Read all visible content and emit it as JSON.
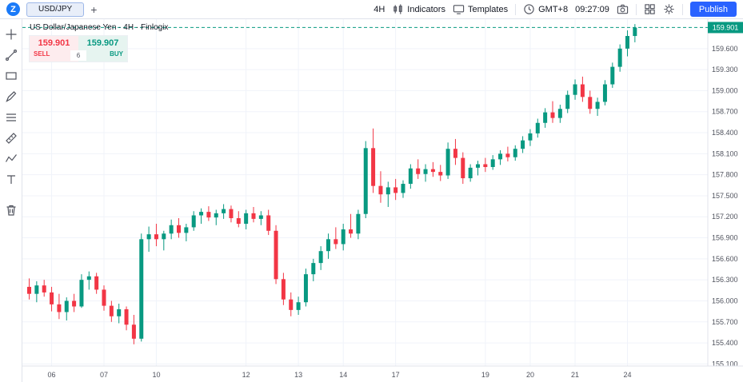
{
  "header": {
    "logo_letter": "Z",
    "tab_symbol": "USD/JPY",
    "add_tab_label": "+",
    "interval": "4H",
    "indicators_label": "Indicators",
    "templates_label": "Templates",
    "timezone": "GMT+8",
    "clock": "09:27:09",
    "publish_label": "Publish"
  },
  "left_toolbar": {
    "items": [
      "crosshair",
      "trend-line",
      "rectangle",
      "brush",
      "fib-lines",
      "ruler",
      "pattern",
      "text-annotation",
      "trash"
    ]
  },
  "legend": {
    "title": "US Dollar/Japanese Yen · 4H · Finlogix",
    "sell_price": "159.901",
    "sell_label": "SELL",
    "buy_price": "159.907",
    "buy_label": "BUY",
    "spread": "6"
  },
  "colors": {
    "up": "#089981",
    "down": "#f23645",
    "accent": "#2962ff",
    "grid": "#f0f3fa",
    "axis_text": "#50535e",
    "axis_border": "#e0e3eb"
  },
  "chart_data": {
    "type": "candlestick",
    "symbol": "USD/JPY",
    "interval": "4H",
    "title": "US Dollar/Japanese Yen · 4H · Finlogix",
    "current_price": 159.901,
    "current_price_label": "159.901",
    "price_range": [
      155.07,
      160.02
    ],
    "grid": true,
    "price_axis": [
      "159.600",
      "159.300",
      "159.000",
      "158.700",
      "158.400",
      "158.100",
      "157.800",
      "157.500",
      "157.200",
      "156.900",
      "156.600",
      "156.300",
      "156.000",
      "155.700",
      "155.400",
      "155.100"
    ],
    "time_axis": [
      {
        "label": "06",
        "i": 3
      },
      {
        "label": "07",
        "i": 10
      },
      {
        "label": "10",
        "i": 17
      },
      {
        "label": "12",
        "i": 29
      },
      {
        "label": "13",
        "i": 36
      },
      {
        "label": "14",
        "i": 42
      },
      {
        "label": "17",
        "i": 49
      },
      {
        "label": "19",
        "i": 61
      },
      {
        "label": "20",
        "i": 67
      },
      {
        "label": "21",
        "i": 73
      },
      {
        "label": "24",
        "i": 80
      }
    ],
    "candles": [
      [
        156.2,
        156.32,
        156.02,
        156.1
      ],
      [
        156.1,
        156.28,
        155.98,
        156.22
      ],
      [
        156.22,
        156.3,
        156.06,
        156.12
      ],
      [
        156.12,
        156.2,
        155.85,
        155.95
      ],
      [
        155.95,
        156.1,
        155.74,
        155.84
      ],
      [
        155.84,
        156.05,
        155.72,
        156.0
      ],
      [
        156.0,
        156.1,
        155.84,
        155.92
      ],
      [
        155.92,
        156.38,
        155.9,
        156.3
      ],
      [
        156.3,
        156.42,
        156.16,
        156.35
      ],
      [
        156.35,
        156.4,
        156.1,
        156.16
      ],
      [
        156.16,
        156.22,
        155.86,
        155.93
      ],
      [
        155.93,
        156.0,
        155.7,
        155.78
      ],
      [
        155.78,
        155.96,
        155.68,
        155.88
      ],
      [
        155.88,
        155.92,
        155.58,
        155.66
      ],
      [
        155.66,
        155.8,
        155.38,
        155.46
      ],
      [
        155.46,
        156.96,
        155.42,
        156.88
      ],
      [
        156.88,
        157.06,
        156.7,
        156.95
      ],
      [
        156.95,
        157.1,
        156.78,
        156.88
      ],
      [
        156.88,
        157.0,
        156.72,
        156.96
      ],
      [
        156.96,
        157.16,
        156.88,
        157.08
      ],
      [
        157.08,
        157.18,
        156.9,
        156.97
      ],
      [
        156.97,
        157.1,
        156.85,
        157.05
      ],
      [
        157.05,
        157.28,
        157.0,
        157.22
      ],
      [
        157.22,
        157.32,
        157.1,
        157.27
      ],
      [
        157.27,
        157.35,
        157.14,
        157.19
      ],
      [
        157.19,
        157.3,
        157.08,
        157.25
      ],
      [
        157.25,
        157.38,
        157.17,
        157.31
      ],
      [
        157.31,
        157.36,
        157.12,
        157.18
      ],
      [
        157.18,
        157.28,
        157.05,
        157.1
      ],
      [
        157.1,
        157.3,
        157.02,
        157.25
      ],
      [
        157.25,
        157.34,
        157.12,
        157.17
      ],
      [
        157.17,
        157.28,
        157.08,
        157.22
      ],
      [
        157.22,
        157.3,
        156.94,
        157.0
      ],
      [
        157.0,
        157.08,
        156.24,
        156.31
      ],
      [
        156.31,
        156.4,
        155.94,
        156.02
      ],
      [
        156.02,
        156.12,
        155.78,
        155.87
      ],
      [
        155.87,
        156.06,
        155.8,
        155.98
      ],
      [
        155.98,
        156.46,
        155.92,
        156.38
      ],
      [
        156.38,
        156.6,
        156.28,
        156.54
      ],
      [
        156.54,
        156.78,
        156.44,
        156.71
      ],
      [
        156.71,
        156.96,
        156.6,
        156.88
      ],
      [
        156.88,
        157.05,
        156.74,
        156.81
      ],
      [
        156.81,
        157.1,
        156.72,
        157.02
      ],
      [
        157.02,
        157.24,
        156.9,
        156.96
      ],
      [
        156.96,
        157.3,
        156.88,
        157.24
      ],
      [
        157.24,
        158.28,
        157.18,
        158.18
      ],
      [
        158.18,
        158.46,
        157.54,
        157.64
      ],
      [
        157.64,
        157.85,
        157.4,
        157.52
      ],
      [
        157.52,
        157.7,
        157.34,
        157.62
      ],
      [
        157.62,
        157.74,
        157.44,
        157.54
      ],
      [
        157.54,
        157.72,
        157.47,
        157.67
      ],
      [
        157.67,
        157.95,
        157.6,
        157.89
      ],
      [
        157.89,
        158.02,
        157.74,
        157.81
      ],
      [
        157.81,
        157.95,
        157.7,
        157.88
      ],
      [
        157.88,
        157.98,
        157.77,
        157.84
      ],
      [
        157.84,
        157.94,
        157.71,
        157.79
      ],
      [
        157.79,
        158.26,
        157.74,
        158.17
      ],
      [
        158.17,
        158.31,
        157.94,
        158.04
      ],
      [
        158.04,
        158.12,
        157.67,
        157.75
      ],
      [
        157.75,
        157.95,
        157.7,
        157.9
      ],
      [
        157.9,
        158.0,
        157.79,
        157.95
      ],
      [
        157.95,
        158.04,
        157.84,
        157.91
      ],
      [
        157.91,
        158.08,
        157.87,
        158.02
      ],
      [
        158.02,
        158.15,
        157.94,
        158.1
      ],
      [
        158.1,
        158.2,
        157.99,
        158.05
      ],
      [
        158.05,
        158.22,
        158.0,
        158.17
      ],
      [
        158.17,
        158.35,
        158.11,
        158.29
      ],
      [
        158.29,
        158.45,
        158.21,
        158.39
      ],
      [
        158.39,
        158.6,
        158.33,
        158.54
      ],
      [
        158.54,
        158.75,
        158.47,
        158.69
      ],
      [
        158.69,
        158.85,
        158.54,
        158.61
      ],
      [
        158.61,
        158.8,
        158.54,
        158.74
      ],
      [
        158.74,
        159.0,
        158.68,
        158.94
      ],
      [
        158.94,
        159.16,
        158.87,
        159.09
      ],
      [
        159.09,
        159.2,
        158.84,
        158.91
      ],
      [
        158.91,
        159.0,
        158.67,
        158.74
      ],
      [
        158.74,
        158.9,
        158.64,
        158.84
      ],
      [
        158.84,
        159.15,
        158.79,
        159.09
      ],
      [
        159.09,
        159.4,
        159.04,
        159.34
      ],
      [
        159.34,
        159.66,
        159.27,
        159.6
      ],
      [
        159.6,
        159.86,
        159.49,
        159.78
      ],
      [
        159.78,
        159.95,
        159.69,
        159.9
      ]
    ]
  }
}
